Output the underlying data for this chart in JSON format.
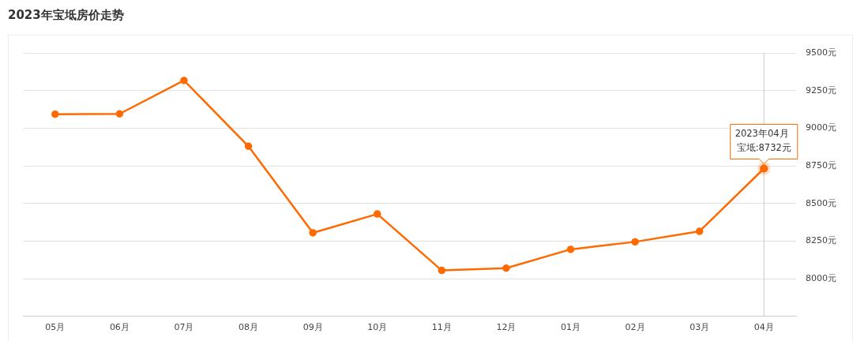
{
  "chart_data": {
    "type": "line",
    "title": "2023年宝坻房价走势",
    "categories": [
      "05月",
      "06月",
      "07月",
      "08月",
      "09月",
      "10月",
      "11月",
      "12月",
      "01月",
      "02月",
      "03月",
      "04月"
    ],
    "series": [
      {
        "color": "#ff6a00",
        "values": [
          9093,
          9095,
          9317,
          8880,
          8305,
          8430,
          8055,
          8070,
          8195,
          8245,
          8315,
          8732
        ]
      }
    ],
    "ylim": [
      7750,
      9500
    ],
    "yticks": [
      {
        "value": 8000,
        "label": "8000元"
      },
      {
        "value": 8250,
        "label": "8250元"
      },
      {
        "value": 8500,
        "label": "8500元"
      },
      {
        "value": 8750,
        "label": "8750元"
      },
      {
        "value": 9000,
        "label": "9000元"
      },
      {
        "value": 9250,
        "label": "9250元"
      },
      {
        "value": 9500,
        "label": "9500元"
      }
    ],
    "grid": "y",
    "legend": false,
    "marker": "circle",
    "line_style": "solid",
    "ref_lines": [
      {
        "axis": "x",
        "value": "04月",
        "color": "#c8c8d0"
      }
    ],
    "annotations": [
      "2023年04月",
      {
        "text": "宝坻:8732元",
        "x": "04月",
        "y": 8732
      }
    ]
  }
}
